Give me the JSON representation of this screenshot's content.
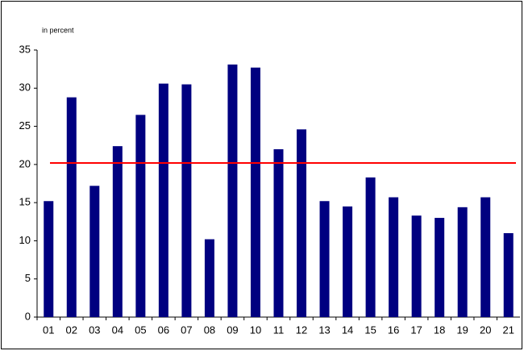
{
  "chart_data": {
    "type": "bar",
    "y_label": "in percent",
    "categories": [
      "01",
      "02",
      "03",
      "04",
      "05",
      "06",
      "07",
      "08",
      "09",
      "10",
      "11",
      "12",
      "13",
      "14",
      "15",
      "16",
      "17",
      "18",
      "19",
      "20",
      "21"
    ],
    "values": [
      15.2,
      28.8,
      17.2,
      22.4,
      26.5,
      30.6,
      30.5,
      10.2,
      33.1,
      32.7,
      22.0,
      24.6,
      15.2,
      14.5,
      18.3,
      15.7,
      13.3,
      13.0,
      14.4,
      15.7,
      11.0
    ],
    "color": "#000080",
    "reference_line": {
      "value": 20.2,
      "color": "#ff0000"
    },
    "ylim": [
      0,
      35
    ],
    "yticks": [
      0,
      5,
      10,
      15,
      20,
      25,
      30,
      35
    ],
    "grid": false
  }
}
